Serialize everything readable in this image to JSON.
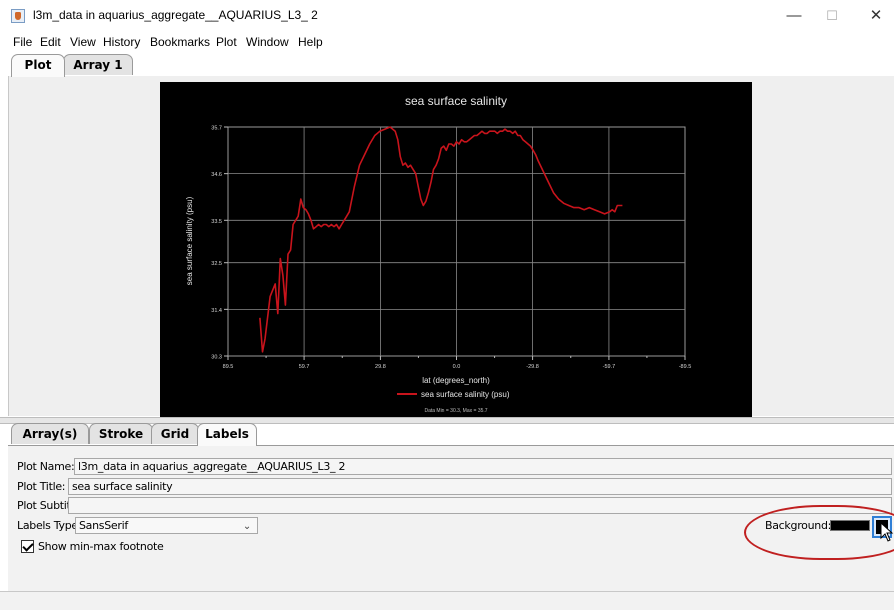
{
  "window": {
    "title": "l3m_data in aquarius_aggregate__AQUARIUS_L3_ 2",
    "controls": {
      "minimize": "—",
      "maximize": "☐",
      "close": "✕"
    }
  },
  "menu": [
    "File",
    "Edit",
    "View",
    "History",
    "Bookmarks",
    "Plot",
    "Window",
    "Help"
  ],
  "top_tabs": [
    {
      "label": "Plot",
      "active": true
    },
    {
      "label": "Array 1",
      "active": false
    }
  ],
  "chart_data": {
    "type": "line",
    "title": "sea surface salinity",
    "xlabel": "lat (degrees_north)",
    "ylabel": "sea surface salinity (psu)",
    "x_ticks": [
      "89.5",
      "59.7",
      "29.8",
      "0.0",
      "-29.8",
      "-59.7",
      "-89.5"
    ],
    "y_ticks": [
      "30.3",
      "31.4",
      "32.5",
      "33.5",
      "34.6",
      "35.7"
    ],
    "xlim": [
      89.5,
      -89.5
    ],
    "ylim": [
      30.3,
      35.7
    ],
    "grid": true,
    "legend_position": "bottom",
    "footnote": "Data Min = 30.3, Max = 35.7",
    "series": [
      {
        "name": "sea surface salinity (psu)",
        "color": "#c8141c",
        "x": [
          77,
          76,
          75,
          73,
          71,
          70,
          69,
          68,
          67,
          66,
          65,
          64,
          63,
          62,
          61,
          60,
          59,
          58,
          57,
          56,
          55,
          54,
          53,
          52,
          51,
          50,
          49,
          48,
          47,
          46,
          45,
          44,
          42,
          40,
          38,
          36,
          34,
          32,
          30,
          28,
          26,
          24,
          23,
          22,
          21,
          20,
          19,
          18,
          17,
          16,
          15,
          14,
          13,
          12,
          11,
          10,
          9,
          8,
          7,
          6,
          5,
          4,
          3,
          2,
          1,
          0,
          -1,
          -2,
          -3,
          -4,
          -5,
          -6,
          -7,
          -8,
          -9,
          -10,
          -11,
          -12,
          -13,
          -14,
          -15,
          -16,
          -17,
          -18,
          -19,
          -20,
          -21,
          -22,
          -23,
          -24,
          -25,
          -26,
          -27,
          -28,
          -29,
          -30,
          -31,
          -32,
          -34,
          -36,
          -38,
          -40,
          -42,
          -44,
          -46,
          -48,
          -50,
          -52,
          -54,
          -56,
          -58,
          -60,
          -61,
          -62,
          -63,
          -64,
          -65
        ],
        "y": [
          31.2,
          30.4,
          30.7,
          31.7,
          32.0,
          31.3,
          32.6,
          32.2,
          31.5,
          32.7,
          32.8,
          33.4,
          33.5,
          33.6,
          34.0,
          33.8,
          33.75,
          33.65,
          33.5,
          33.3,
          33.35,
          33.4,
          33.35,
          33.4,
          33.4,
          33.35,
          33.4,
          33.35,
          33.4,
          33.3,
          33.4,
          33.5,
          33.7,
          34.3,
          34.8,
          35.05,
          35.3,
          35.5,
          35.6,
          35.65,
          35.7,
          35.6,
          35.4,
          35.0,
          34.8,
          34.85,
          34.75,
          34.8,
          34.7,
          34.6,
          34.3,
          34.0,
          33.85,
          33.95,
          34.15,
          34.4,
          34.7,
          34.8,
          34.95,
          35.2,
          35.25,
          35.15,
          35.3,
          35.3,
          35.25,
          35.35,
          35.3,
          35.4,
          35.35,
          35.35,
          35.4,
          35.45,
          35.5,
          35.5,
          35.55,
          35.6,
          35.55,
          35.55,
          35.6,
          35.6,
          35.6,
          35.55,
          35.6,
          35.6,
          35.65,
          35.6,
          35.6,
          35.55,
          35.6,
          35.5,
          35.5,
          35.4,
          35.35,
          35.3,
          35.25,
          35.15,
          35.05,
          34.9,
          34.65,
          34.4,
          34.15,
          34.0,
          33.9,
          33.85,
          33.8,
          33.8,
          33.75,
          33.8,
          33.75,
          33.7,
          33.65,
          33.7,
          33.75,
          33.7,
          33.85,
          33.85,
          33.85
        ]
      }
    ]
  },
  "bottom_tabs": [
    {
      "label": "Array(s)",
      "active": false
    },
    {
      "label": "Stroke",
      "active": false
    },
    {
      "label": "Grid",
      "active": false
    },
    {
      "label": "Labels",
      "active": true
    }
  ],
  "form": {
    "plot_name_label": "Plot Name:",
    "plot_name_value": "l3m_data in aquarius_aggregate__AQUARIUS_L3_ 2",
    "plot_title_label": "Plot Title:",
    "plot_title_value": "sea surface salinity",
    "plot_subtitle_label": "Plot Subtitle:",
    "plot_subtitle_value": "",
    "typeface_label": "Labels Typeface:",
    "typeface_value": "SansSerif",
    "minmax_label": "Show min-max footnote",
    "minmax_checked": true,
    "background_label": "Background:",
    "background_color": "#000000"
  }
}
